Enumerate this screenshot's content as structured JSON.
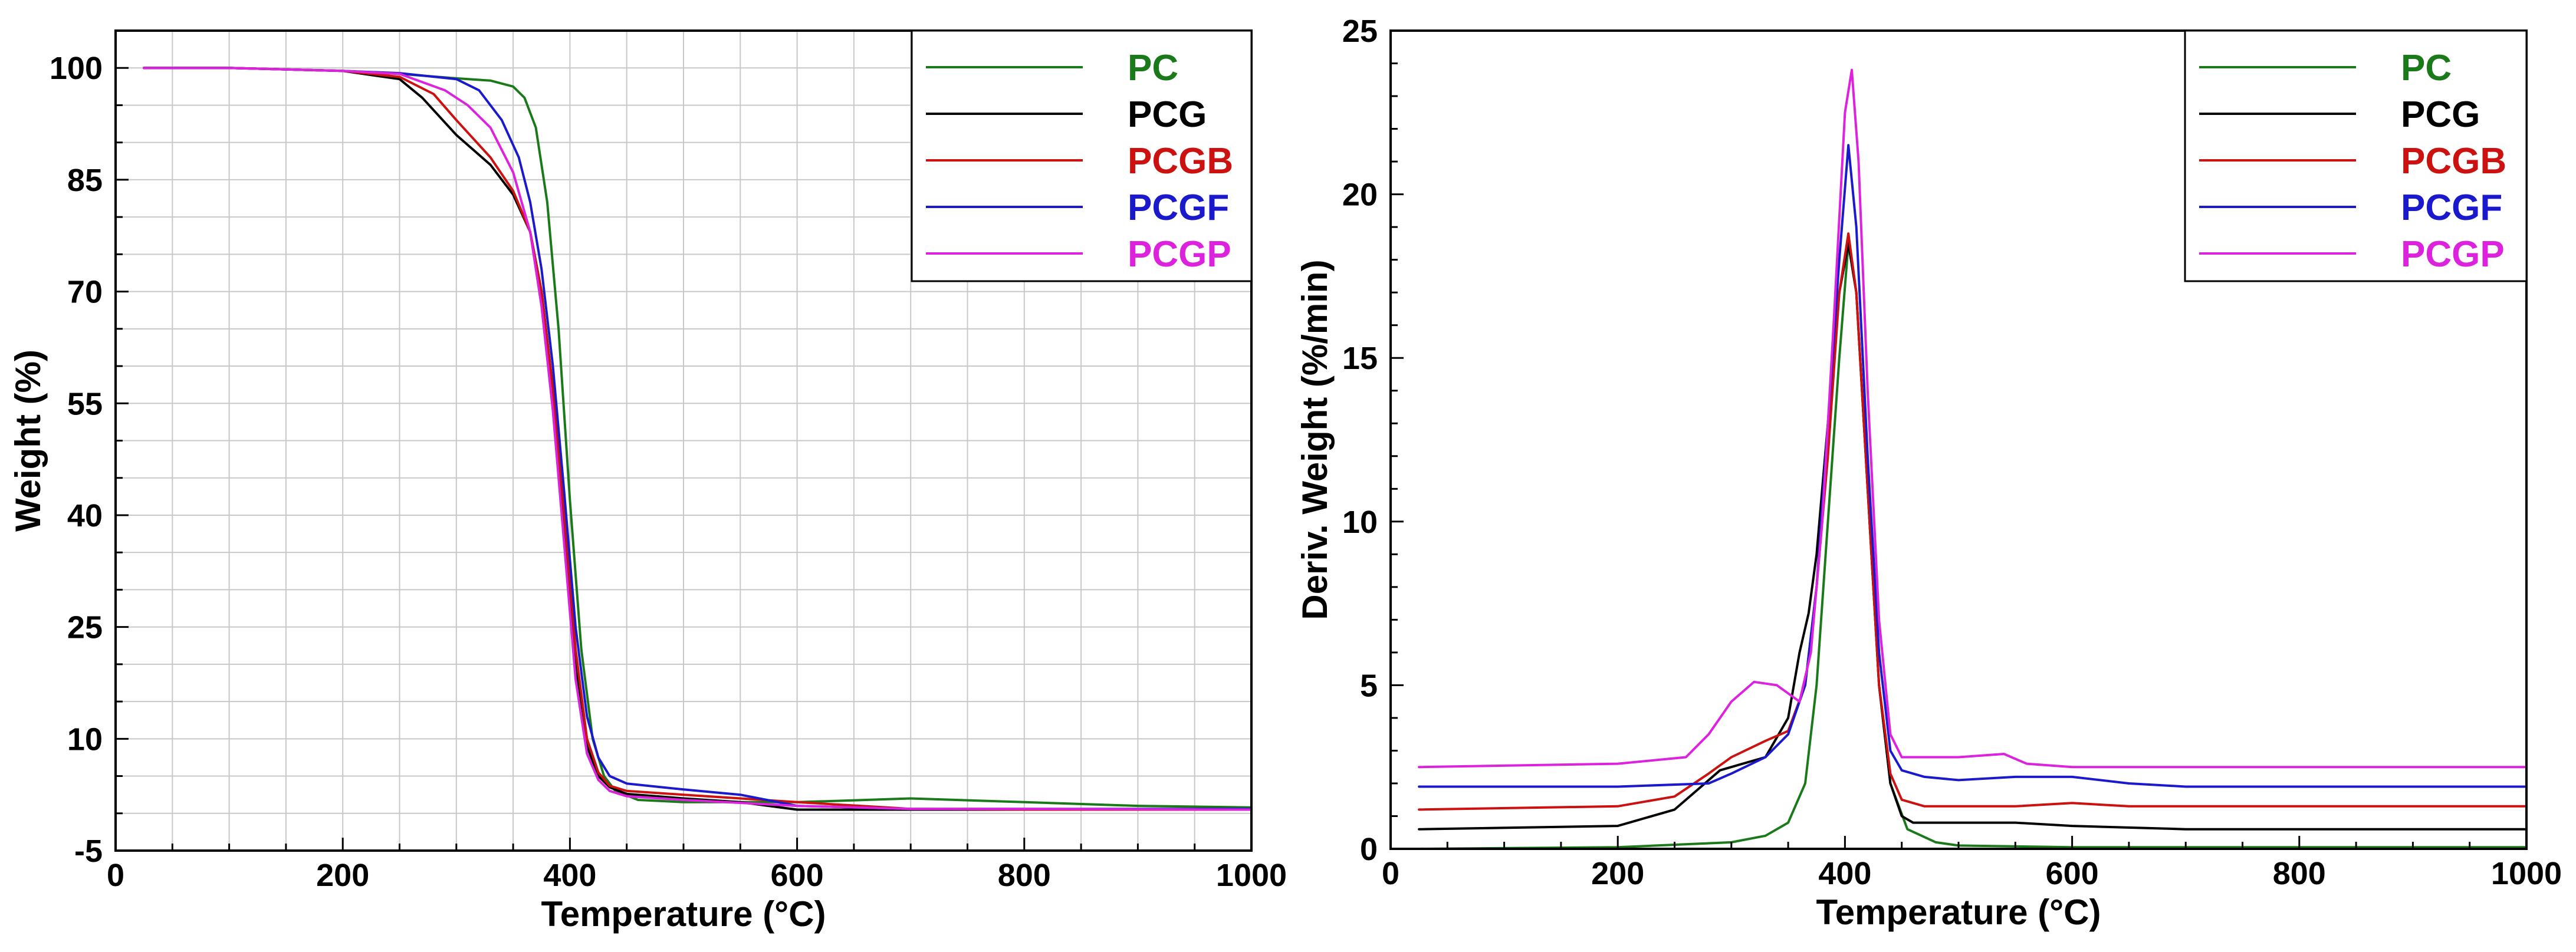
{
  "colors": {
    "PC": "#1a7a1a",
    "PCG": "#000000",
    "PCGB": "#cc1111",
    "PCGF": "#1a1acc",
    "PCGP": "#dd22dd"
  },
  "chart_data": [
    {
      "type": "line",
      "title": "",
      "xlabel": "Temperature (°C)",
      "ylabel": "Weight (%)",
      "xlim": [
        0,
        1000
      ],
      "ylim": [
        -5,
        105
      ],
      "xticks": [
        0,
        200,
        400,
        600,
        800,
        1000
      ],
      "yticks": [
        -5,
        10,
        25,
        40,
        55,
        70,
        85,
        100
      ],
      "xgrid_step": 50,
      "ygrid_step": 5,
      "grid": true,
      "legend_position": "top-right",
      "series": [
        {
          "name": "PC",
          "x": [
            25,
            100,
            200,
            250,
            300,
            330,
            350,
            360,
            370,
            380,
            390,
            400,
            410,
            420,
            430,
            440,
            460,
            500,
            600,
            700,
            800,
            900,
            1000
          ],
          "y": [
            100,
            100,
            99.6,
            99.2,
            98.6,
            98.3,
            97.5,
            96,
            92,
            82,
            65,
            42,
            22,
            10,
            5,
            3,
            1.8,
            1.5,
            1.5,
            2,
            1.5,
            1,
            0.8
          ]
        },
        {
          "name": "PCG",
          "x": [
            25,
            100,
            200,
            250,
            270,
            300,
            330,
            350,
            365,
            375,
            385,
            395,
            405,
            415,
            425,
            435,
            450,
            500,
            550,
            600,
            700,
            800,
            1000
          ],
          "y": [
            100,
            100,
            99.6,
            98.5,
            96,
            91,
            87,
            83,
            78,
            70,
            57,
            38,
            20,
            9,
            5,
            3.5,
            2.6,
            2,
            1.5,
            0.5,
            0.5,
            0.5,
            0.5
          ]
        },
        {
          "name": "PCGB",
          "x": [
            25,
            100,
            200,
            250,
            280,
            300,
            330,
            350,
            365,
            375,
            385,
            395,
            405,
            415,
            425,
            435,
            450,
            500,
            600,
            700,
            800,
            1000
          ],
          "y": [
            100,
            100,
            99.6,
            98.8,
            96.5,
            93,
            88,
            83.5,
            78,
            70,
            57,
            40,
            22,
            10,
            5.5,
            3.7,
            3,
            2.5,
            1.5,
            0.6,
            0.5,
            0.5
          ]
        },
        {
          "name": "PCGF",
          "x": [
            25,
            100,
            200,
            250,
            300,
            320,
            340,
            355,
            365,
            375,
            385,
            395,
            405,
            415,
            425,
            435,
            450,
            500,
            550,
            600,
            700,
            800,
            1000
          ],
          "y": [
            100,
            100,
            99.6,
            99.3,
            98.5,
            97,
            93,
            88,
            82,
            73,
            60,
            43,
            25,
            13,
            7.5,
            5,
            4,
            3.2,
            2.5,
            1,
            0.6,
            0.6,
            0.6
          ]
        },
        {
          "name": "PCGP",
          "x": [
            25,
            100,
            200,
            250,
            290,
            310,
            330,
            350,
            365,
            375,
            385,
            395,
            405,
            415,
            425,
            435,
            450,
            500,
            600,
            700,
            800,
            1000
          ],
          "y": [
            100,
            100,
            99.6,
            99.2,
            97,
            95,
            92,
            86,
            78,
            68,
            54,
            36,
            18,
            8,
            4.5,
            3,
            2.3,
            1.8,
            1,
            0.6,
            0.6,
            0.5
          ]
        }
      ]
    },
    {
      "type": "line",
      "title": "",
      "xlabel": "Temperature (°C)",
      "ylabel": "Deriv. Weight (%/min)",
      "xlim": [
        0,
        1000
      ],
      "ylim": [
        0,
        25
      ],
      "xticks": [
        0,
        200,
        400,
        600,
        800,
        1000
      ],
      "yticks": [
        0,
        5,
        10,
        15,
        20,
        25
      ],
      "grid": false,
      "legend_position": "top-right",
      "series": [
        {
          "name": "PC",
          "x": [
            25,
            200,
            300,
            330,
            350,
            365,
            375,
            385,
            395,
            403,
            410,
            420,
            430,
            440,
            455,
            480,
            500,
            600,
            800,
            1000
          ],
          "y": [
            0,
            0.05,
            0.2,
            0.4,
            0.8,
            2,
            5,
            10,
            15,
            18.5,
            17,
            11,
            5,
            2,
            0.6,
            0.2,
            0.1,
            0.05,
            0.05,
            0.05
          ]
        },
        {
          "name": "PCG",
          "x": [
            25,
            200,
            250,
            270,
            290,
            310,
            330,
            350,
            360,
            368,
            375,
            385,
            395,
            403,
            410,
            420,
            430,
            440,
            450,
            460,
            500,
            550,
            600,
            700,
            800,
            1000
          ],
          "y": [
            0.6,
            0.7,
            1.2,
            1.8,
            2.4,
            2.6,
            2.8,
            4,
            6,
            7.2,
            9,
            13,
            17,
            18.5,
            17,
            11,
            5,
            2,
            1,
            0.8,
            0.8,
            0.8,
            0.7,
            0.6,
            0.6,
            0.6
          ]
        },
        {
          "name": "PCGB",
          "x": [
            25,
            200,
            250,
            280,
            300,
            330,
            350,
            365,
            375,
            385,
            395,
            403,
            410,
            420,
            430,
            440,
            450,
            470,
            550,
            600,
            650,
            700,
            800,
            1000
          ],
          "y": [
            1.2,
            1.3,
            1.6,
            2.3,
            2.8,
            3.3,
            3.6,
            5,
            8,
            12,
            17,
            18.8,
            17,
            11,
            5,
            2.3,
            1.5,
            1.3,
            1.3,
            1.4,
            1.3,
            1.3,
            1.3,
            1.3
          ]
        },
        {
          "name": "PCGF",
          "x": [
            25,
            200,
            280,
            300,
            330,
            350,
            365,
            375,
            385,
            395,
            403,
            410,
            420,
            430,
            440,
            450,
            470,
            500,
            550,
            600,
            650,
            700,
            800,
            1000
          ],
          "y": [
            1.9,
            1.9,
            2,
            2.3,
            2.8,
            3.5,
            5,
            8,
            13,
            18,
            21.5,
            19,
            12,
            6,
            3,
            2.4,
            2.2,
            2.1,
            2.2,
            2.2,
            2.0,
            1.9,
            1.9,
            1.9
          ]
        },
        {
          "name": "PCGP",
          "x": [
            25,
            200,
            260,
            280,
            300,
            320,
            340,
            360,
            370,
            380,
            390,
            400,
            406,
            412,
            420,
            430,
            440,
            450,
            500,
            540,
            560,
            600,
            700,
            800,
            1000
          ],
          "y": [
            2.5,
            2.6,
            2.8,
            3.5,
            4.5,
            5.1,
            5.0,
            4.5,
            6,
            10,
            16,
            22.5,
            23.8,
            21,
            14,
            7,
            3.5,
            2.8,
            2.8,
            2.9,
            2.6,
            2.5,
            2.5,
            2.5,
            2.5
          ]
        }
      ]
    }
  ]
}
